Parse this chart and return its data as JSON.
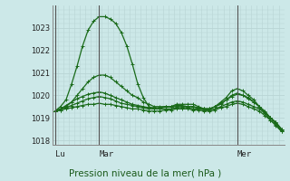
{
  "background_color": "#cce8e8",
  "grid_color": "#b8d4d4",
  "line_color": "#1a6b1a",
  "title": "Pression niveau de la mer( hPa )",
  "ylim": [
    1017.8,
    1024.0
  ],
  "yticks": [
    1018,
    1019,
    1020,
    1021,
    1022,
    1023
  ],
  "day_labels": [
    "Lu",
    "Mar",
    "Mer"
  ],
  "day_positions": [
    0,
    8,
    33
  ],
  "n_points": 42,
  "series": [
    [
      1019.3,
      1019.5,
      1019.8,
      1020.5,
      1021.3,
      1022.2,
      1022.9,
      1023.3,
      1023.5,
      1023.5,
      1023.4,
      1023.2,
      1022.8,
      1022.2,
      1021.4,
      1020.5,
      1019.9,
      1019.5,
      1019.4,
      1019.4,
      1019.5,
      1019.5,
      1019.6,
      1019.6,
      1019.6,
      1019.6,
      1019.5,
      1019.4,
      1019.4,
      1019.5,
      1019.7,
      1019.9,
      1020.2,
      1020.3,
      1020.2,
      1020.0,
      1019.8,
      1019.5,
      1019.2,
      1018.9,
      1018.7,
      1018.4
    ],
    [
      1019.3,
      1019.4,
      1019.5,
      1019.7,
      1020.0,
      1020.3,
      1020.6,
      1020.8,
      1020.9,
      1020.9,
      1020.8,
      1020.6,
      1020.4,
      1020.2,
      1020.0,
      1019.9,
      1019.7,
      1019.6,
      1019.5,
      1019.5,
      1019.5,
      1019.5,
      1019.5,
      1019.5,
      1019.5,
      1019.5,
      1019.4,
      1019.4,
      1019.4,
      1019.5,
      1019.6,
      1019.8,
      1020.0,
      1020.1,
      1020.0,
      1019.9,
      1019.7,
      1019.5,
      1019.3,
      1019.0,
      1018.8,
      1018.5
    ],
    [
      1019.3,
      1019.35,
      1019.45,
      1019.55,
      1019.65,
      1019.75,
      1019.85,
      1019.9,
      1019.95,
      1019.9,
      1019.85,
      1019.75,
      1019.65,
      1019.6,
      1019.55,
      1019.5,
      1019.45,
      1019.4,
      1019.4,
      1019.4,
      1019.4,
      1019.4,
      1019.45,
      1019.45,
      1019.45,
      1019.4,
      1019.4,
      1019.35,
      1019.35,
      1019.4,
      1019.5,
      1019.6,
      1019.7,
      1019.75,
      1019.7,
      1019.6,
      1019.5,
      1019.4,
      1019.2,
      1019.0,
      1018.8,
      1018.5
    ],
    [
      1019.3,
      1019.35,
      1019.4,
      1019.45,
      1019.5,
      1019.55,
      1019.6,
      1019.6,
      1019.65,
      1019.6,
      1019.6,
      1019.55,
      1019.5,
      1019.45,
      1019.4,
      1019.4,
      1019.35,
      1019.3,
      1019.3,
      1019.3,
      1019.35,
      1019.35,
      1019.4,
      1019.4,
      1019.4,
      1019.35,
      1019.35,
      1019.3,
      1019.3,
      1019.35,
      1019.45,
      1019.5,
      1019.6,
      1019.65,
      1019.6,
      1019.5,
      1019.4,
      1019.3,
      1019.1,
      1018.9,
      1018.65,
      1018.4
    ],
    [
      1019.3,
      1019.4,
      1019.55,
      1019.7,
      1019.85,
      1019.95,
      1020.05,
      1020.1,
      1020.15,
      1020.1,
      1020.0,
      1019.9,
      1019.8,
      1019.7,
      1019.6,
      1019.55,
      1019.5,
      1019.45,
      1019.45,
      1019.45,
      1019.5,
      1019.5,
      1019.55,
      1019.55,
      1019.5,
      1019.5,
      1019.45,
      1019.4,
      1019.4,
      1019.5,
      1019.65,
      1019.8,
      1019.95,
      1020.05,
      1020.0,
      1019.85,
      1019.7,
      1019.5,
      1019.25,
      1019.0,
      1018.75,
      1018.45
    ]
  ]
}
